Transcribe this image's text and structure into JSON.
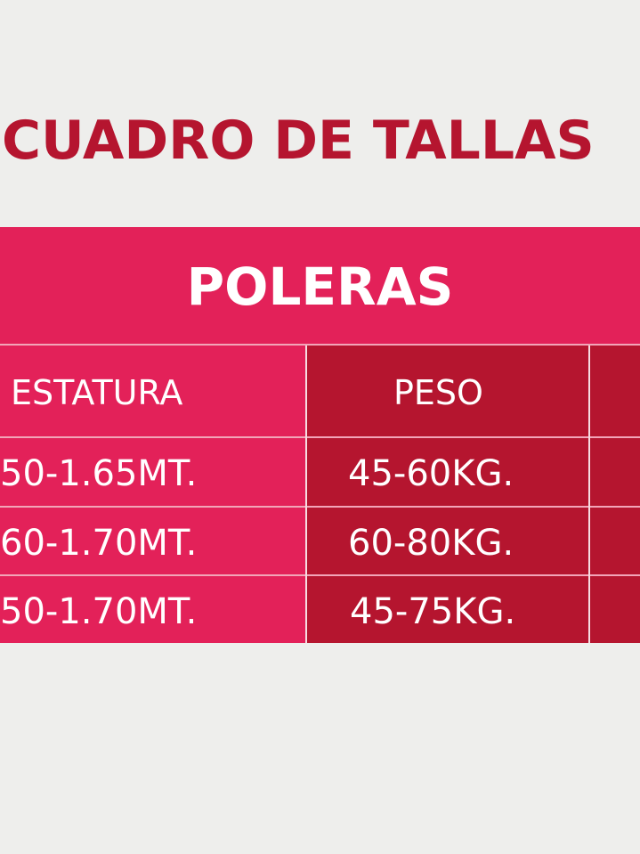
{
  "title": "CUADRO DE TALLAS",
  "banner": "POLERAS",
  "colors": {
    "background": "#eeeeec",
    "title": "#b5152f",
    "pink": "#e32159",
    "dark_red": "#b5152f"
  },
  "table": {
    "headers": [
      "ESTATURA",
      "PESO"
    ],
    "rows": [
      [
        "50-1.65MT.",
        "45-60KG."
      ],
      [
        "60-1.70MT.",
        "60-80KG."
      ],
      [
        "50-1.70MT.",
        "45-75KG."
      ]
    ]
  }
}
